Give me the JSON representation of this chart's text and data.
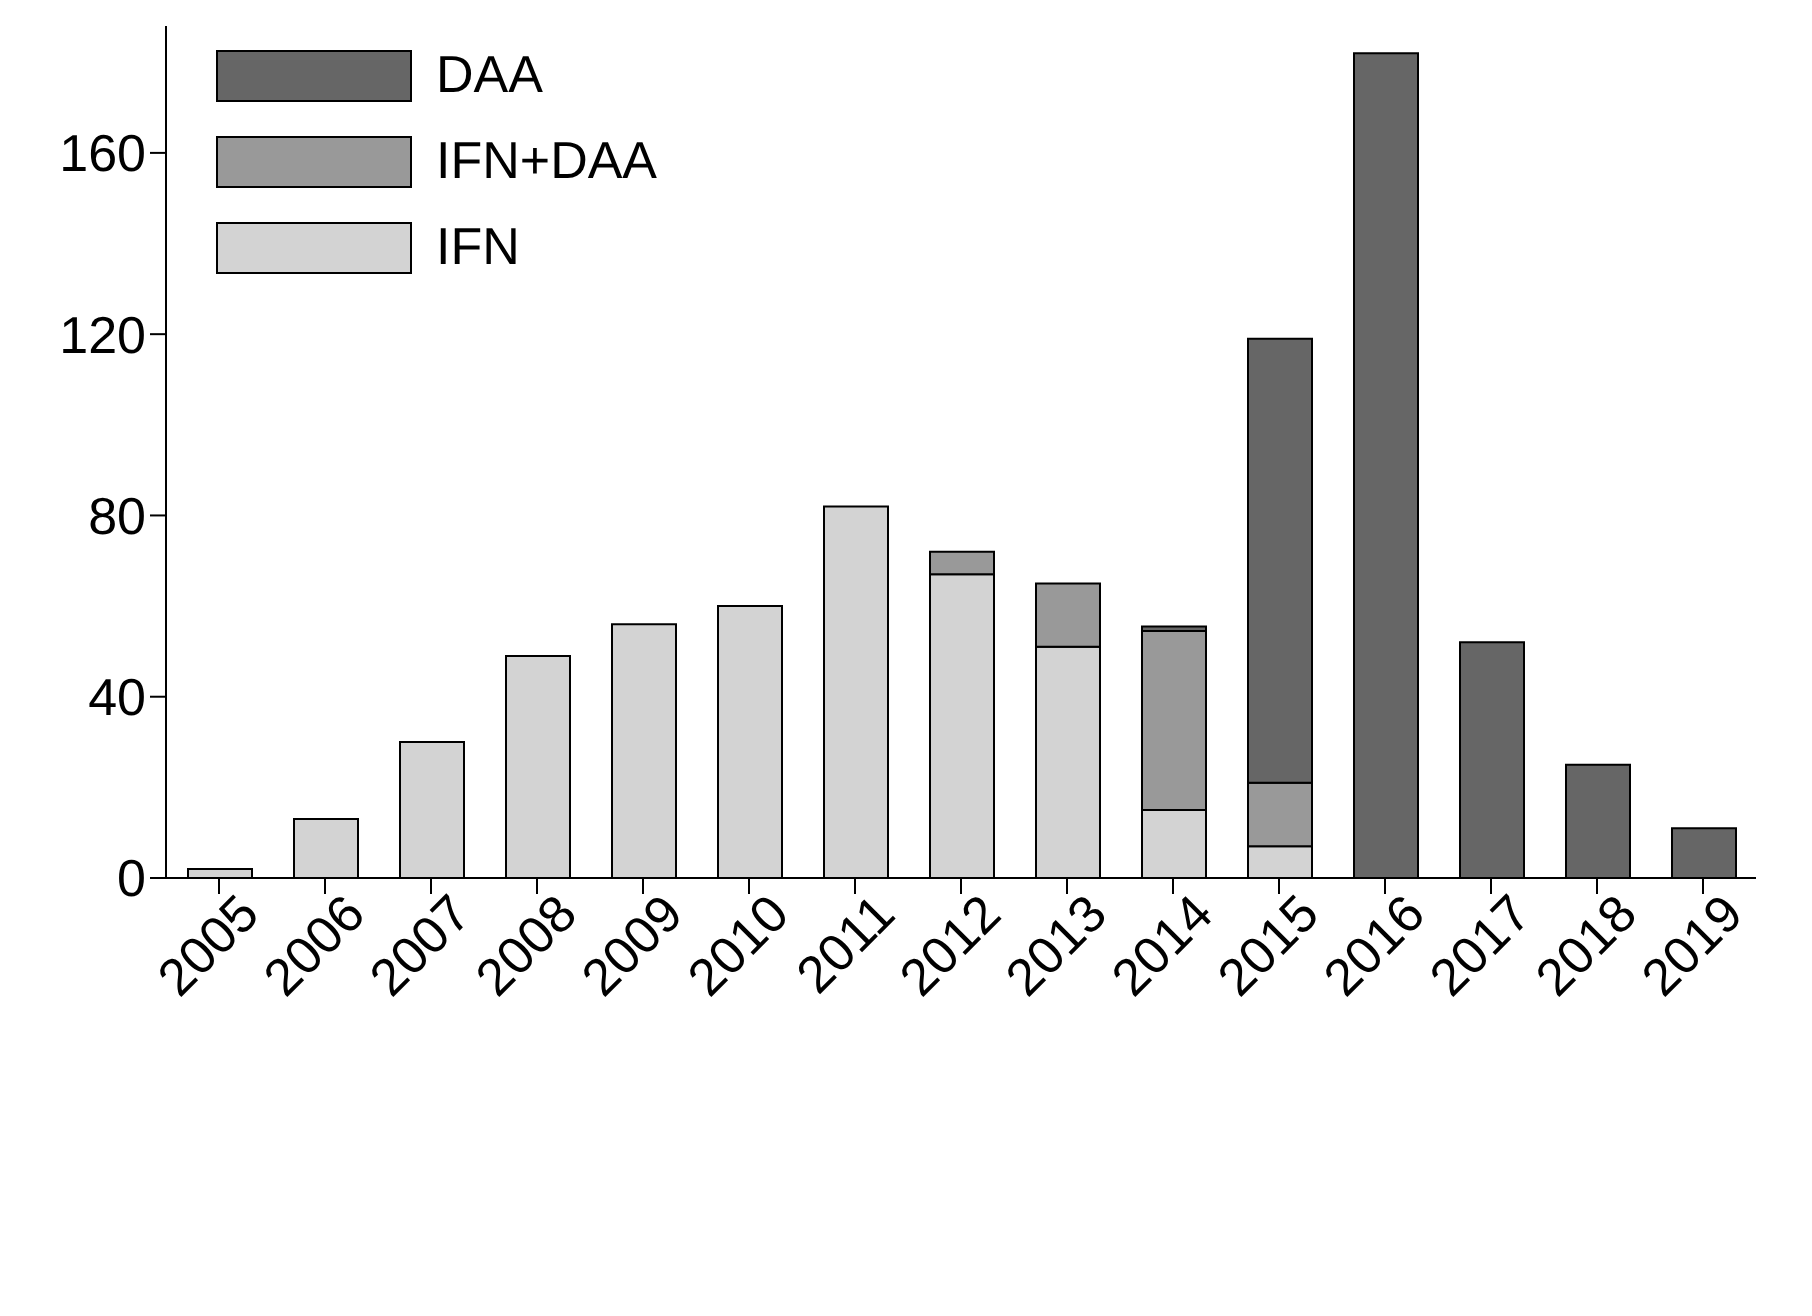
{
  "chart_data": {
    "type": "bar",
    "stacked": true,
    "categories": [
      "2005",
      "2006",
      "2007",
      "2008",
      "2009",
      "2010",
      "2011",
      "2012",
      "2013",
      "2014",
      "2015",
      "2016",
      "2017",
      "2018",
      "2019"
    ],
    "series": [
      {
        "name": "IFN",
        "color": "#d3d3d3",
        "values": [
          2,
          13,
          30,
          49,
          56,
          60,
          82,
          67,
          51,
          15,
          7,
          0,
          0,
          0,
          0
        ]
      },
      {
        "name": "IFN+DAA",
        "color": "#999999",
        "values": [
          0,
          0,
          0,
          0,
          0,
          0,
          0,
          5,
          14,
          39.5,
          14,
          0,
          0,
          0,
          0
        ]
      },
      {
        "name": "DAA",
        "color": "#666666",
        "values": [
          0,
          0,
          0,
          0,
          0,
          0,
          0,
          0,
          0,
          1,
          98,
          182,
          52,
          25,
          11
        ]
      }
    ],
    "ylim": [
      0,
      188
    ],
    "yticks": [
      0,
      40,
      80,
      120,
      160
    ],
    "grid": false,
    "legend": "top left"
  }
}
